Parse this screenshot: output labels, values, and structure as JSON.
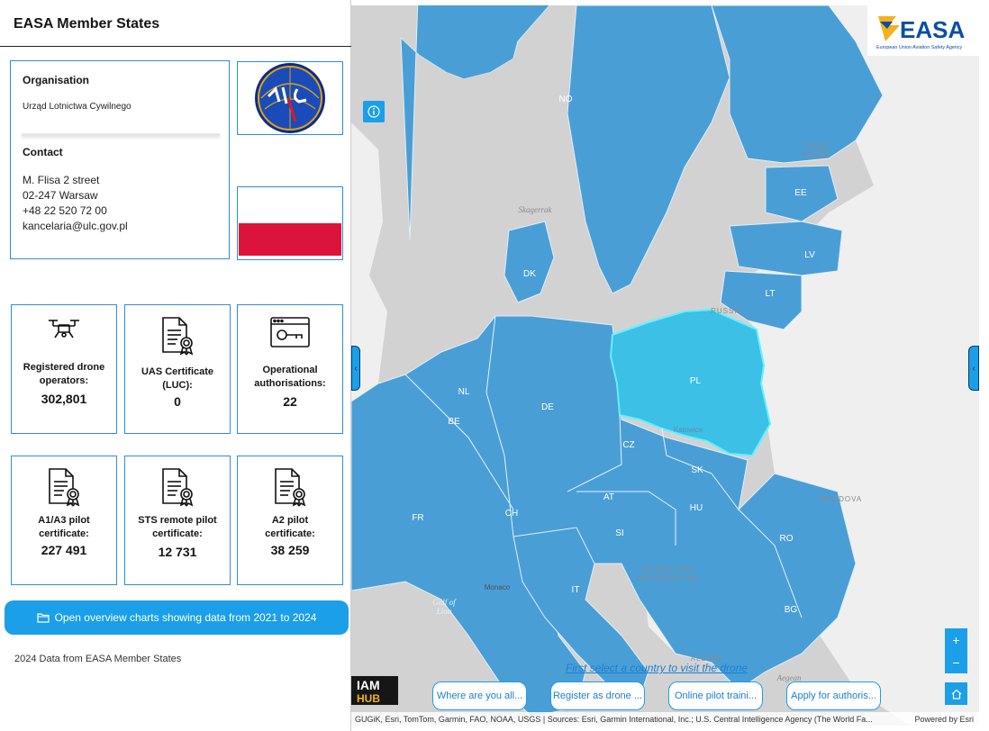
{
  "sidebar": {
    "title": "EASA Member States",
    "organisation_label": "Organisation",
    "organisation_value": "Urząd Lotnictwa Cywilnego",
    "contact_label": "Contact",
    "contact_lines": [
      "M. Flisa 2 street",
      "02-247 Warsaw",
      "+48 22 520 72 00",
      "kancelaria@ulc.gov.pl"
    ],
    "flag_colors": {
      "top": "#ffffff",
      "bottom": "#dc143c"
    },
    "stats": [
      {
        "icon": "drone-icon",
        "label": "Registered drone operators:",
        "value": "302,801"
      },
      {
        "icon": "certificate-icon",
        "label": "UAS Certificate (LUC):",
        "value": "0"
      },
      {
        "icon": "key-window-icon",
        "label": "Operational authorisations:",
        "value": "22"
      },
      {
        "icon": "certificate-icon",
        "label": "A1/A3 pilot certificate:",
        "value": "227 491"
      },
      {
        "icon": "certificate-icon",
        "label": "STS remote pilot certificate:",
        "value": "12 731"
      },
      {
        "icon": "certificate-icon",
        "label": "A2 pilot certificate:",
        "value": "38 259"
      }
    ],
    "overview_button": "Open overview charts showing data from 2021 to 2024",
    "footer_note": "2024 Data from EASA Member States"
  },
  "map": {
    "logo_text": "EASA",
    "logo_subtitle": "European Union Aviation Safety Agency",
    "selected_country": "PL",
    "accent": "#1b9fe8",
    "member_fill": "#4a9ed6",
    "selected_fill": "#3cc0e6",
    "country_labels": [
      "NO",
      "EE",
      "LV",
      "LT",
      "DK",
      "NL",
      "BE",
      "DE",
      "PL",
      "CZ",
      "SK",
      "AT",
      "CH",
      "HU",
      "RO",
      "SI",
      "FR",
      "IT",
      "BG"
    ],
    "place_labels": {
      "gulf_finland": [
        "Gulf of",
        "Finland"
      ],
      "skagerrak": "Skagerrak",
      "russia": "RUSSIA",
      "katowice": "Katowice",
      "moldova": "MOLDOVA",
      "bosnia": [
        "BOSNIA AND",
        "HERZEGOVINA"
      ],
      "gulf_lion": [
        "Gulf of",
        "Lion"
      ],
      "monaco": "Monaco",
      "albania": "ALBANI",
      "aegean": "Aegean"
    },
    "hint": "First select a country to visit the drone",
    "buttons": [
      "Where are you all...",
      "Register as drone ...",
      "Online pilot traini...",
      "Apply for authoris..."
    ],
    "zoom_in": "+",
    "zoom_out": "−",
    "iam_hub": [
      "IAM",
      "HUB"
    ],
    "attribution": "GUGiK, Esri, TomTom, Garmin, FAO, NOAA, USGS | Sources: Esri, Garmin International, Inc.; U.S. Central Intelligence Agency (The World Fa...",
    "powered_by": "Powered by Esri"
  }
}
